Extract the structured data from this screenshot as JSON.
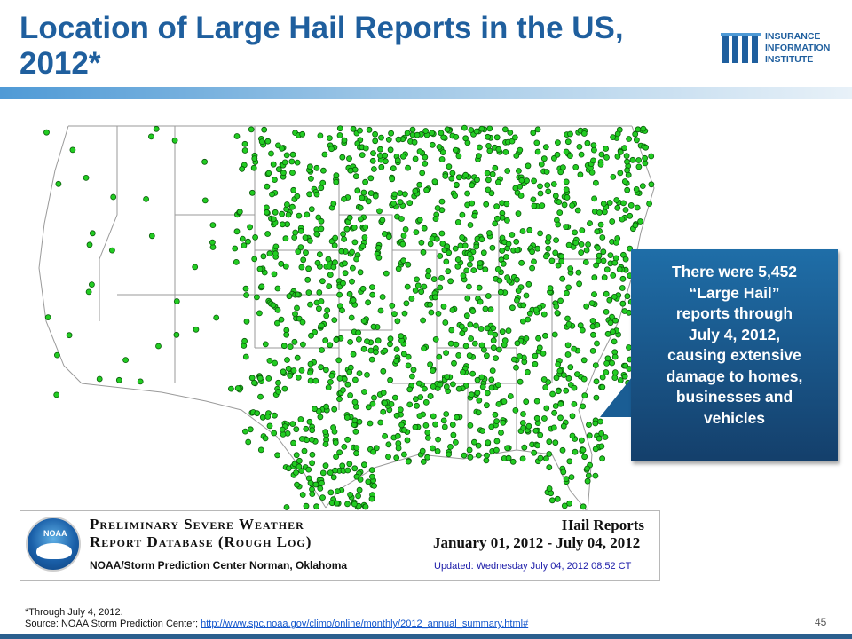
{
  "slide": {
    "title": "Location of Large Hail Reports in the US, 2012*",
    "page_number": "45"
  },
  "logo": {
    "line1": "INSURANCE",
    "line2": "INFORMATION",
    "line3": "INSTITUTE"
  },
  "map_legend": {
    "db_title_line1": "Preliminary Severe Weather",
    "db_title_line2": "Report Database (Rough Log)",
    "org": "NOAA/Storm Prediction Center   Norman, Oklahoma",
    "report_type": "Hail Reports",
    "date_range": "January 01, 2012 - July 04, 2012",
    "updated": "Updated: Wednesday July 04, 2012 08:52 CT",
    "noaa_label": "NOAA"
  },
  "callout": {
    "line1": "There were 5,452",
    "line2": "“Large Hail”",
    "line3": "reports through",
    "line4": "July 4, 2012,",
    "line5": "causing extensive",
    "line6": "damage to homes,",
    "line7": "businesses and",
    "line8": "vehicles"
  },
  "footer": {
    "footnote": "*Through July 4, 2012.",
    "source_prefix": "Source: NOAA Storm Prediction Center; ",
    "source_link": "http://www.spc.noaa.gov/climo/online/monthly/2012_annual_summary.html#"
  },
  "colors": {
    "title": "#1f5f9e",
    "dot": "#22cc22",
    "callout_bg": "#1a5a8e"
  }
}
